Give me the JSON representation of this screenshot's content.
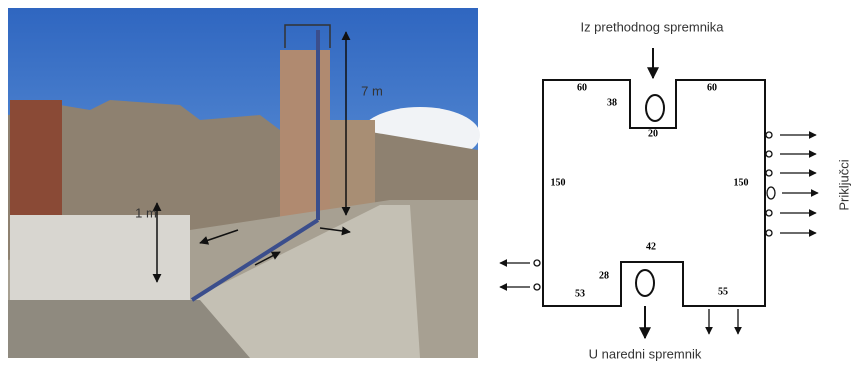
{
  "photo": {
    "height_label": "7 m",
    "block_label": "1 m"
  },
  "diagram": {
    "top_label": "Iz prethodnog spremnika",
    "bottom_label": "U naredni spremnik",
    "side_label": "Priključci",
    "dimensions": [
      "60",
      "38",
      "60",
      "20",
      "150",
      "150",
      "42",
      "28",
      "53",
      "55"
    ]
  }
}
